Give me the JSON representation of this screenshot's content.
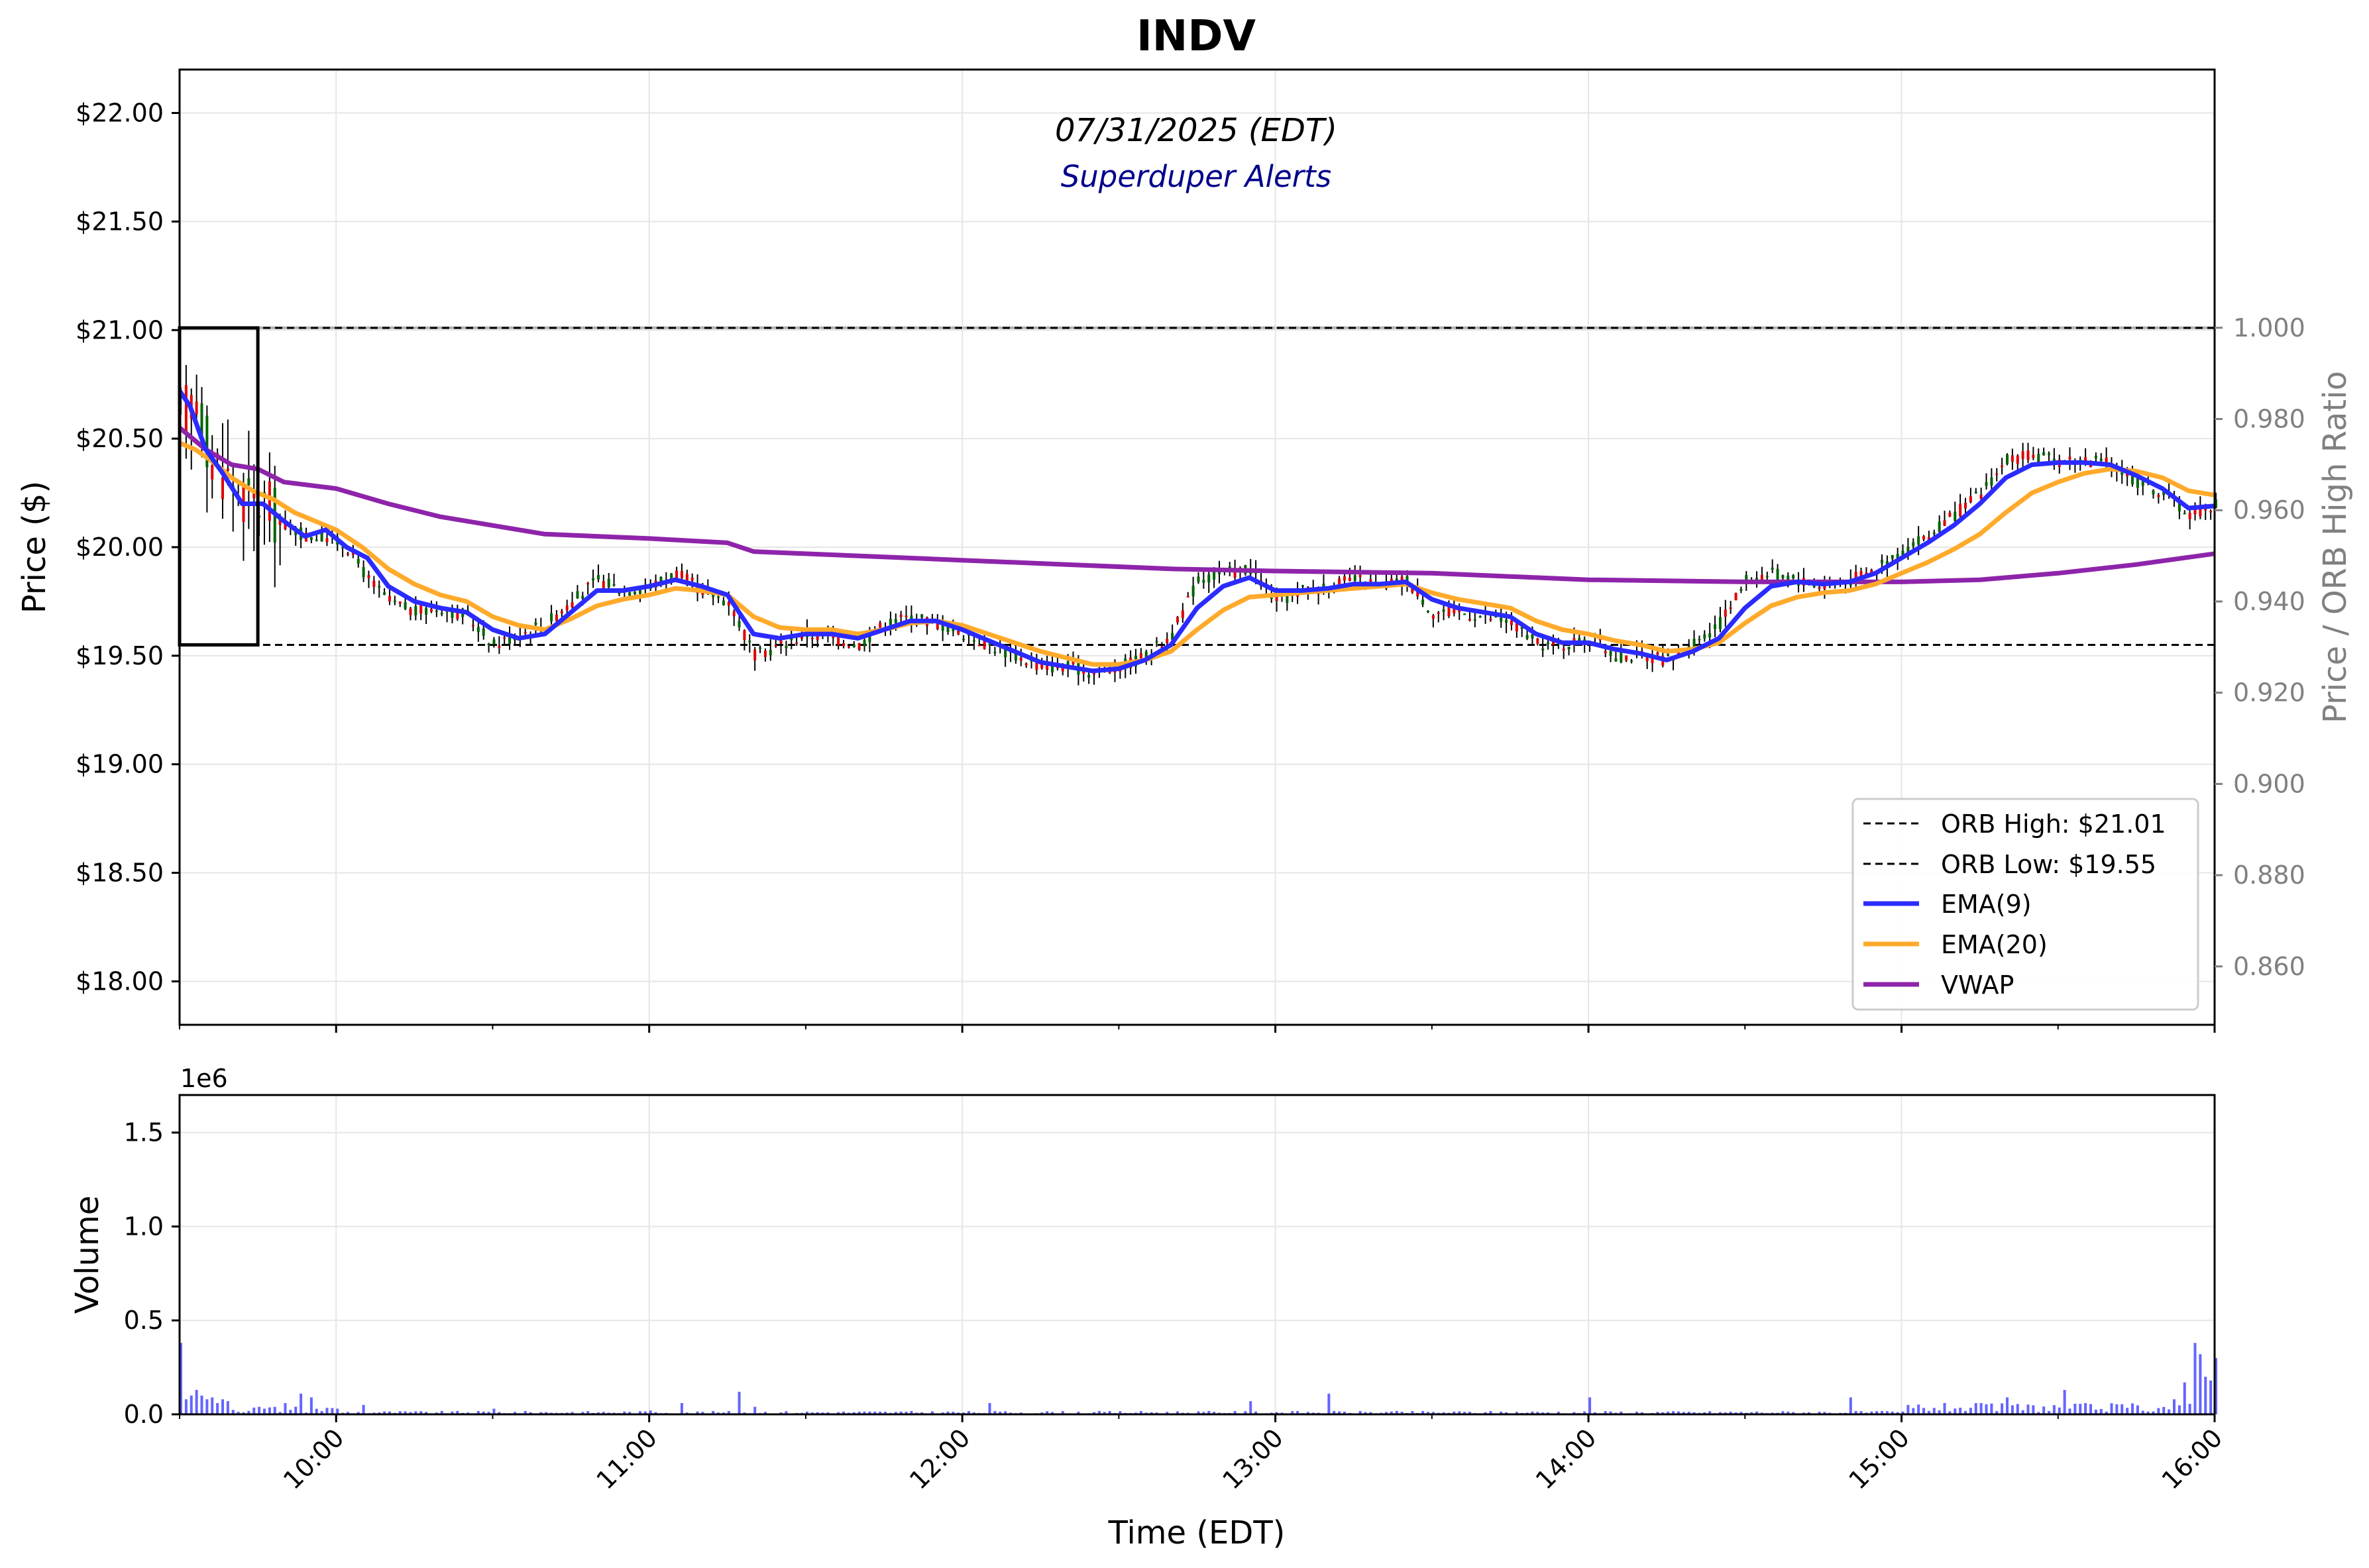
{
  "chart_data": {
    "type": "candlestick",
    "title": "INDV",
    "subtitle": "07/31/2025 (EDT)",
    "watermark": "Superduper Alerts",
    "xlabel": "Time (EDT)",
    "ylabel": "Price ($)",
    "y2label": "Price / ORB High Ratio",
    "volume_ylabel": "Volume",
    "volume_scale_label": "1e6",
    "x_ticks": [
      "10:00",
      "11:00",
      "12:00",
      "13:00",
      "14:00",
      "15:00",
      "16:00"
    ],
    "y_ticks": [
      "$18.00",
      "$18.50",
      "$19.00",
      "$19.50",
      "$20.00",
      "$20.50",
      "$21.00",
      "$21.50",
      "$22.00"
    ],
    "y2_ticks": [
      "0.860",
      "0.880",
      "0.900",
      "0.920",
      "0.940",
      "0.960",
      "0.980",
      "1.000"
    ],
    "volume_ticks": [
      "0.0",
      "0.5",
      "1.0",
      "1.5"
    ],
    "xlim": [
      "09:30",
      "16:00"
    ],
    "ylim": [
      17.8,
      22.2
    ],
    "y2lim": [
      0.8472,
      1.0566
    ],
    "volume_ylim": [
      0,
      1.7
    ],
    "grid": true,
    "legend_position": "lower-right",
    "legend": [
      {
        "label": "ORB High: $21.01",
        "style": "dashed",
        "color": "#000000"
      },
      {
        "label": "ORB Low: $19.55",
        "style": "dashed",
        "color": "#000000"
      },
      {
        "label": "EMA(9)",
        "style": "solid",
        "color": "#2b2bff"
      },
      {
        "label": "EMA(20)",
        "style": "solid",
        "color": "#ffaa2b"
      },
      {
        "label": "VWAP",
        "style": "solid",
        "color": "#8e24aa"
      }
    ],
    "orb": {
      "high": 21.01,
      "low": 19.55,
      "start": "09:30",
      "end": "09:45"
    },
    "colors": {
      "up": "#006400",
      "down": "#e00000",
      "ema9": "#2b2bff",
      "ema20": "#ffaa2b",
      "vwap": "#8e24aa",
      "volume": "#4a4aff",
      "watermark": "#00008b"
    },
    "price_path": [
      [
        "09:30",
        20.6
      ],
      [
        "09:33",
        20.7
      ],
      [
        "09:36",
        20.4
      ],
      [
        "09:40",
        20.3
      ],
      [
        "09:43",
        20.2
      ],
      [
        "09:46",
        20.2
      ],
      [
        "09:50",
        20.1
      ],
      [
        "09:54",
        20.05
      ],
      [
        "09:58",
        20.05
      ],
      [
        "10:02",
        20.0
      ],
      [
        "10:06",
        19.85
      ],
      [
        "10:10",
        19.75
      ],
      [
        "10:15",
        19.7
      ],
      [
        "10:20",
        19.72
      ],
      [
        "10:25",
        19.68
      ],
      [
        "10:30",
        19.55
      ],
      [
        "10:35",
        19.6
      ],
      [
        "10:40",
        19.65
      ],
      [
        "10:45",
        19.75
      ],
      [
        "10:50",
        19.85
      ],
      [
        "10:55",
        19.8
      ],
      [
        "11:00",
        19.82
      ],
      [
        "11:05",
        19.88
      ],
      [
        "11:10",
        19.8
      ],
      [
        "11:15",
        19.75
      ],
      [
        "11:20",
        19.5
      ],
      [
        "11:25",
        19.55
      ],
      [
        "11:30",
        19.6
      ],
      [
        "11:35",
        19.58
      ],
      [
        "11:40",
        19.55
      ],
      [
        "11:45",
        19.65
      ],
      [
        "11:50",
        19.68
      ],
      [
        "11:55",
        19.65
      ],
      [
        "12:00",
        19.6
      ],
      [
        "12:05",
        19.55
      ],
      [
        "12:10",
        19.5
      ],
      [
        "12:15",
        19.45
      ],
      [
        "12:20",
        19.45
      ],
      [
        "12:25",
        19.42
      ],
      [
        "12:30",
        19.45
      ],
      [
        "12:35",
        19.5
      ],
      [
        "12:40",
        19.6
      ],
      [
        "12:45",
        19.85
      ],
      [
        "12:50",
        19.88
      ],
      [
        "12:55",
        19.9
      ],
      [
        "13:00",
        19.75
      ],
      [
        "13:05",
        19.8
      ],
      [
        "13:10",
        19.82
      ],
      [
        "13:15",
        19.85
      ],
      [
        "13:20",
        19.82
      ],
      [
        "13:25",
        19.85
      ],
      [
        "13:30",
        19.7
      ],
      [
        "13:35",
        19.7
      ],
      [
        "13:40",
        19.68
      ],
      [
        "13:45",
        19.65
      ],
      [
        "13:50",
        19.55
      ],
      [
        "13:55",
        19.55
      ],
      [
        "14:00",
        19.58
      ],
      [
        "14:05",
        19.5
      ],
      [
        "14:10",
        19.5
      ],
      [
        "14:15",
        19.48
      ],
      [
        "14:20",
        19.55
      ],
      [
        "14:25",
        19.65
      ],
      [
        "14:30",
        19.85
      ],
      [
        "14:35",
        19.88
      ],
      [
        "14:40",
        19.85
      ],
      [
        "14:45",
        19.82
      ],
      [
        "14:50",
        19.85
      ],
      [
        "14:55",
        19.9
      ],
      [
        "15:00",
        19.98
      ],
      [
        "15:05",
        20.05
      ],
      [
        "15:10",
        20.15
      ],
      [
        "15:15",
        20.25
      ],
      [
        "15:20",
        20.4
      ],
      [
        "15:25",
        20.42
      ],
      [
        "15:30",
        20.4
      ],
      [
        "15:35",
        20.4
      ],
      [
        "15:40",
        20.38
      ],
      [
        "15:45",
        20.3
      ],
      [
        "15:50",
        20.25
      ],
      [
        "15:55",
        20.15
      ],
      [
        "16:00",
        20.2
      ]
    ],
    "ema9": [
      [
        "09:30",
        20.72
      ],
      [
        "09:32",
        20.65
      ],
      [
        "09:35",
        20.45
      ],
      [
        "09:38",
        20.35
      ],
      [
        "09:42",
        20.2
      ],
      [
        "09:46",
        20.2
      ],
      [
        "09:50",
        20.12
      ],
      [
        "09:54",
        20.05
      ],
      [
        "09:58",
        20.08
      ],
      [
        "10:02",
        20.0
      ],
      [
        "10:06",
        19.95
      ],
      [
        "10:10",
        19.82
      ],
      [
        "10:15",
        19.75
      ],
      [
        "10:20",
        19.72
      ],
      [
        "10:25",
        19.7
      ],
      [
        "10:30",
        19.62
      ],
      [
        "10:35",
        19.58
      ],
      [
        "10:40",
        19.6
      ],
      [
        "10:45",
        19.7
      ],
      [
        "10:50",
        19.8
      ],
      [
        "10:55",
        19.8
      ],
      [
        "11:00",
        19.82
      ],
      [
        "11:05",
        19.85
      ],
      [
        "11:10",
        19.82
      ],
      [
        "11:15",
        19.78
      ],
      [
        "11:20",
        19.6
      ],
      [
        "11:25",
        19.58
      ],
      [
        "11:30",
        19.6
      ],
      [
        "11:35",
        19.6
      ],
      [
        "11:40",
        19.58
      ],
      [
        "11:45",
        19.62
      ],
      [
        "11:50",
        19.66
      ],
      [
        "11:55",
        19.66
      ],
      [
        "12:00",
        19.62
      ],
      [
        "12:05",
        19.57
      ],
      [
        "12:10",
        19.52
      ],
      [
        "12:15",
        19.47
      ],
      [
        "12:20",
        19.45
      ],
      [
        "12:25",
        19.43
      ],
      [
        "12:30",
        19.44
      ],
      [
        "12:35",
        19.48
      ],
      [
        "12:40",
        19.55
      ],
      [
        "12:45",
        19.72
      ],
      [
        "12:50",
        19.82
      ],
      [
        "12:55",
        19.86
      ],
      [
        "13:00",
        19.8
      ],
      [
        "13:05",
        19.8
      ],
      [
        "13:10",
        19.81
      ],
      [
        "13:15",
        19.83
      ],
      [
        "13:20",
        19.83
      ],
      [
        "13:25",
        19.84
      ],
      [
        "13:30",
        19.76
      ],
      [
        "13:35",
        19.72
      ],
      [
        "13:40",
        19.7
      ],
      [
        "13:45",
        19.68
      ],
      [
        "13:50",
        19.6
      ],
      [
        "13:55",
        19.56
      ],
      [
        "14:00",
        19.56
      ],
      [
        "14:05",
        19.53
      ],
      [
        "14:10",
        19.51
      ],
      [
        "14:15",
        19.48
      ],
      [
        "14:20",
        19.52
      ],
      [
        "14:25",
        19.58
      ],
      [
        "14:30",
        19.72
      ],
      [
        "14:35",
        19.82
      ],
      [
        "14:40",
        19.84
      ],
      [
        "14:45",
        19.83
      ],
      [
        "14:50",
        19.84
      ],
      [
        "14:55",
        19.88
      ],
      [
        "15:00",
        19.95
      ],
      [
        "15:05",
        20.02
      ],
      [
        "15:10",
        20.1
      ],
      [
        "15:15",
        20.2
      ],
      [
        "15:20",
        20.32
      ],
      [
        "15:25",
        20.38
      ],
      [
        "15:30",
        20.39
      ],
      [
        "15:35",
        20.39
      ],
      [
        "15:40",
        20.38
      ],
      [
        "15:45",
        20.33
      ],
      [
        "15:50",
        20.27
      ],
      [
        "15:55",
        20.18
      ],
      [
        "16:00",
        20.19
      ]
    ],
    "ema20": [
      [
        "09:30",
        20.48
      ],
      [
        "09:33",
        20.45
      ],
      [
        "09:36",
        20.4
      ],
      [
        "09:40",
        20.32
      ],
      [
        "09:44",
        20.26
      ],
      [
        "09:48",
        20.22
      ],
      [
        "09:52",
        20.16
      ],
      [
        "09:56",
        20.12
      ],
      [
        "10:00",
        20.08
      ],
      [
        "10:05",
        20.0
      ],
      [
        "10:10",
        19.9
      ],
      [
        "10:15",
        19.83
      ],
      [
        "10:20",
        19.78
      ],
      [
        "10:25",
        19.75
      ],
      [
        "10:30",
        19.68
      ],
      [
        "10:35",
        19.64
      ],
      [
        "10:40",
        19.62
      ],
      [
        "10:45",
        19.67
      ],
      [
        "10:50",
        19.73
      ],
      [
        "10:55",
        19.76
      ],
      [
        "11:00",
        19.78
      ],
      [
        "11:05",
        19.81
      ],
      [
        "11:10",
        19.8
      ],
      [
        "11:15",
        19.78
      ],
      [
        "11:20",
        19.68
      ],
      [
        "11:25",
        19.63
      ],
      [
        "11:30",
        19.62
      ],
      [
        "11:35",
        19.62
      ],
      [
        "11:40",
        19.6
      ],
      [
        "11:45",
        19.62
      ],
      [
        "11:50",
        19.65
      ],
      [
        "11:55",
        19.66
      ],
      [
        "12:00",
        19.64
      ],
      [
        "12:05",
        19.6
      ],
      [
        "12:10",
        19.56
      ],
      [
        "12:15",
        19.52
      ],
      [
        "12:20",
        19.49
      ],
      [
        "12:25",
        19.46
      ],
      [
        "12:30",
        19.46
      ],
      [
        "12:35",
        19.48
      ],
      [
        "12:40",
        19.52
      ],
      [
        "12:45",
        19.62
      ],
      [
        "12:50",
        19.71
      ],
      [
        "12:55",
        19.77
      ],
      [
        "13:00",
        19.78
      ],
      [
        "13:05",
        19.79
      ],
      [
        "13:10",
        19.8
      ],
      [
        "13:15",
        19.81
      ],
      [
        "13:20",
        19.82
      ],
      [
        "13:25",
        19.83
      ],
      [
        "13:30",
        19.79
      ],
      [
        "13:35",
        19.76
      ],
      [
        "13:40",
        19.74
      ],
      [
        "13:45",
        19.72
      ],
      [
        "13:50",
        19.66
      ],
      [
        "13:55",
        19.62
      ],
      [
        "14:00",
        19.6
      ],
      [
        "14:05",
        19.57
      ],
      [
        "14:10",
        19.55
      ],
      [
        "14:15",
        19.52
      ],
      [
        "14:20",
        19.53
      ],
      [
        "14:25",
        19.56
      ],
      [
        "14:30",
        19.65
      ],
      [
        "14:35",
        19.73
      ],
      [
        "14:40",
        19.77
      ],
      [
        "14:45",
        19.79
      ],
      [
        "14:50",
        19.8
      ],
      [
        "14:55",
        19.83
      ],
      [
        "15:00",
        19.88
      ],
      [
        "15:05",
        19.93
      ],
      [
        "15:10",
        19.99
      ],
      [
        "15:15",
        20.06
      ],
      [
        "15:20",
        20.16
      ],
      [
        "15:25",
        20.25
      ],
      [
        "15:30",
        20.3
      ],
      [
        "15:35",
        20.34
      ],
      [
        "15:40",
        20.36
      ],
      [
        "15:45",
        20.35
      ],
      [
        "15:50",
        20.32
      ],
      [
        "15:55",
        20.26
      ],
      [
        "16:00",
        20.24
      ]
    ],
    "vwap": [
      [
        "09:30",
        20.55
      ],
      [
        "09:35",
        20.45
      ],
      [
        "09:40",
        20.38
      ],
      [
        "09:45",
        20.36
      ],
      [
        "09:50",
        20.3
      ],
      [
        "10:00",
        20.27
      ],
      [
        "10:10",
        20.2
      ],
      [
        "10:20",
        20.14
      ],
      [
        "10:30",
        20.1
      ],
      [
        "10:40",
        20.06
      ],
      [
        "11:00",
        20.04
      ],
      [
        "11:15",
        20.02
      ],
      [
        "11:20",
        19.98
      ],
      [
        "11:40",
        19.96
      ],
      [
        "12:00",
        19.94
      ],
      [
        "12:20",
        19.92
      ],
      [
        "12:40",
        19.9
      ],
      [
        "13:00",
        19.89
      ],
      [
        "13:30",
        19.88
      ],
      [
        "14:00",
        19.85
      ],
      [
        "14:30",
        19.84
      ],
      [
        "15:00",
        19.84
      ],
      [
        "15:15",
        19.85
      ],
      [
        "15:30",
        19.88
      ],
      [
        "15:45",
        19.92
      ],
      [
        "16:00",
        19.97
      ]
    ],
    "volume_profile": [
      [
        "09:30",
        0.38
      ],
      [
        "09:31",
        0.08
      ],
      [
        "09:32",
        0.1
      ],
      [
        "09:33",
        0.13
      ],
      [
        "09:34",
        0.1
      ],
      [
        "09:35",
        0.08
      ],
      [
        "09:36",
        0.09
      ],
      [
        "09:37",
        0.06
      ],
      [
        "09:38",
        0.08
      ],
      [
        "09:39",
        0.07
      ],
      [
        "09:45",
        0.04
      ],
      [
        "09:50",
        0.06
      ],
      [
        "09:53",
        0.11
      ],
      [
        "09:55",
        0.09
      ],
      [
        "10:00",
        0.03
      ],
      [
        "10:05",
        0.05
      ],
      [
        "10:30",
        0.03
      ],
      [
        "11:00",
        0.02
      ],
      [
        "11:06",
        0.06
      ],
      [
        "11:17",
        0.12
      ],
      [
        "11:20",
        0.04
      ],
      [
        "12:05",
        0.06
      ],
      [
        "12:55",
        0.07
      ],
      [
        "13:10",
        0.11
      ],
      [
        "14:00",
        0.09
      ],
      [
        "14:50",
        0.09
      ],
      [
        "15:20",
        0.09
      ],
      [
        "15:31",
        0.13
      ],
      [
        "15:52",
        0.08
      ],
      [
        "15:54",
        0.17
      ],
      [
        "15:56",
        0.38
      ],
      [
        "15:57",
        0.32
      ],
      [
        "15:58",
        0.2
      ],
      [
        "15:59",
        0.18
      ],
      [
        "16:00",
        0.3
      ]
    ]
  }
}
